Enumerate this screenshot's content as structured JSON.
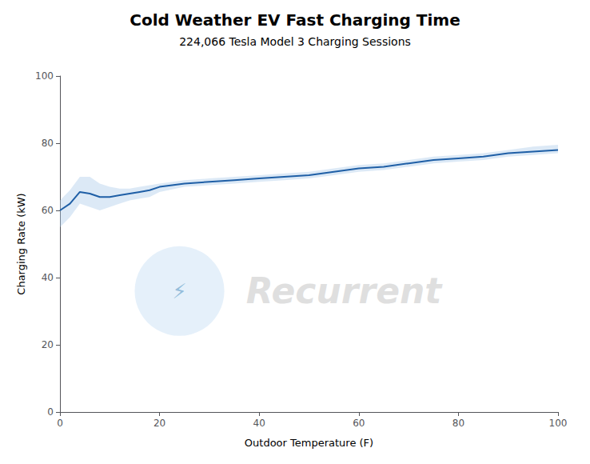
{
  "chart_data": {
    "type": "line",
    "title": "Cold Weather EV Fast Charging Time",
    "subtitle": "224,066 Tesla Model 3 Charging Sessions",
    "xlabel": "Outdoor Temperature (F)",
    "ylabel": "Charging Rate (kW)",
    "x": [
      0,
      2,
      4,
      6,
      8,
      10,
      12,
      14,
      16,
      18,
      20,
      25,
      30,
      35,
      40,
      45,
      50,
      55,
      60,
      65,
      70,
      75,
      80,
      85,
      90,
      95,
      100
    ],
    "series": [
      {
        "type": "band",
        "color": "#a8c8e8",
        "upper": [
          63,
          66,
          70,
          70,
          68,
          67,
          66.5,
          66.5,
          67,
          67.5,
          68,
          69,
          69.5,
          70,
          70.5,
          71,
          71.5,
          72.5,
          73.5,
          74,
          75,
          76,
          76.5,
          77,
          78,
          79,
          79.5
        ],
        "lower": [
          55,
          58,
          62,
          61,
          60,
          61,
          62,
          63,
          63.5,
          64,
          65.5,
          67,
          67.5,
          68,
          68.5,
          69,
          69.5,
          70.5,
          71.5,
          72,
          73,
          74,
          74.5,
          75,
          76,
          76.5,
          77
        ]
      },
      {
        "type": "line",
        "color": "#1f5fa6",
        "values": [
          60,
          62,
          65.5,
          65,
          64,
          64,
          64.5,
          65,
          65.5,
          66,
          67,
          68,
          68.5,
          69,
          69.5,
          70,
          70.5,
          71.5,
          72.5,
          73,
          74,
          75,
          75.5,
          76,
          77,
          77.5,
          78
        ]
      }
    ],
    "xlim": [
      0,
      100
    ],
    "ylim": [
      0,
      100
    ],
    "xticks": [
      0,
      20,
      40,
      60,
      80,
      100
    ],
    "yticks": [
      0,
      20,
      40,
      60,
      80,
      100
    ],
    "grid": false,
    "annotations": [
      "Recurrent",
      "⚡"
    ]
  }
}
